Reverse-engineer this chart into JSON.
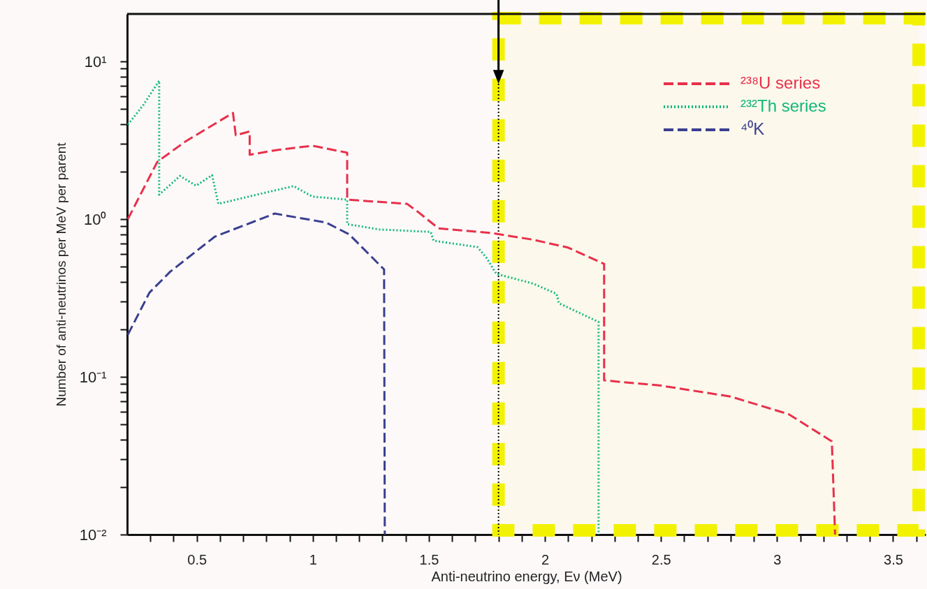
{
  "chart_data": {
    "type": "line",
    "xlabel": "Anti-neutrino energy, Eν (MeV)",
    "ylabel": "Number of anti-neutrinos per MeV per parent",
    "xlim": [
      0.2,
      3.64
    ],
    "ylim": [
      0.01,
      20
    ],
    "log": "y",
    "grid": false,
    "legend": "top right",
    "xticks": [
      {
        "value": 0.3,
        "label": null
      },
      {
        "value": 0.4,
        "label": null
      },
      0.5,
      {
        "value": 0.6,
        "label": null
      },
      {
        "value": 0.7,
        "label": null
      },
      {
        "value": 0.8,
        "label": null
      },
      {
        "value": 0.9,
        "label": null
      },
      1,
      {
        "value": 1.1,
        "label": null
      },
      {
        "value": 1.2,
        "label": null
      },
      {
        "value": 1.3,
        "label": null
      },
      {
        "value": 1.4,
        "label": null
      },
      1.5,
      {
        "value": 1.6,
        "label": null
      },
      {
        "value": 1.7,
        "label": null
      },
      {
        "value": 1.8,
        "label": null
      },
      {
        "value": 1.9,
        "label": null
      },
      2,
      {
        "value": 2.1,
        "label": null
      },
      {
        "value": 2.2,
        "label": null
      },
      {
        "value": 2.3,
        "label": null
      },
      {
        "value": 2.4,
        "label": null
      },
      2.5,
      {
        "value": 2.6,
        "label": null
      },
      {
        "value": 2.7,
        "label": null
      },
      {
        "value": 2.8,
        "label": null
      },
      {
        "value": 2.9,
        "label": null
      },
      3,
      {
        "value": 3.1,
        "label": null
      },
      {
        "value": 3.2,
        "label": null
      },
      {
        "value": 3.3,
        "label": null
      },
      {
        "value": 3.4,
        "label": null
      },
      3.5,
      {
        "value": 3.6,
        "label": null
      }
    ],
    "yticks": [
      {
        "value": 0.01,
        "label": "10⁻²"
      },
      {
        "value": 0.02,
        "label": null
      },
      {
        "value": 0.03,
        "label": null
      },
      {
        "value": 0.04,
        "label": null
      },
      {
        "value": 0.05,
        "label": null
      },
      {
        "value": 0.06,
        "label": null
      },
      {
        "value": 0.07,
        "label": null
      },
      {
        "value": 0.08,
        "label": null
      },
      {
        "value": 0.09,
        "label": null
      },
      {
        "value": 0.1,
        "label": "10⁻¹"
      },
      {
        "value": 0.2,
        "label": null
      },
      {
        "value": 0.3,
        "label": null
      },
      {
        "value": 0.4,
        "label": null
      },
      {
        "value": 0.5,
        "label": null
      },
      {
        "value": 0.6,
        "label": null
      },
      {
        "value": 0.7,
        "label": null
      },
      {
        "value": 0.8,
        "label": null
      },
      {
        "value": 0.9,
        "label": null
      },
      {
        "value": 1,
        "label": "10⁰"
      },
      {
        "value": 2,
        "label": null
      },
      {
        "value": 3,
        "label": null
      },
      {
        "value": 4,
        "label": null
      },
      {
        "value": 5,
        "label": null
      },
      {
        "value": 6,
        "label": null
      },
      {
        "value": 7,
        "label": null
      },
      {
        "value": 8,
        "label": null
      },
      {
        "value": 9,
        "label": null
      },
      {
        "value": 10,
        "label": "10¹"
      }
    ],
    "series": [
      {
        "name": "²³⁸U series",
        "color": "#e8304a",
        "line_style": "dashed",
        "x": [
          0.203,
          0.33,
          0.45,
          0.55,
          0.656,
          0.668,
          0.728,
          0.728,
          0.85,
          0.998,
          1.148,
          1.148,
          1.406,
          1.457,
          1.541,
          1.775,
          1.95,
          2.1,
          2.255,
          2.255,
          2.5,
          2.8,
          3.05,
          3.236,
          3.25
        ],
        "values": [
          1.0,
          2.31,
          3.1,
          3.8,
          4.72,
          3.4,
          3.6,
          2.56,
          2.75,
          2.92,
          2.64,
          1.33,
          1.25,
          1.1,
          0.875,
          0.815,
          0.74,
          0.66,
          0.52,
          0.095,
          0.088,
          0.075,
          0.058,
          0.039,
          0.01
        ]
      },
      {
        "name": "²³²Th series",
        "color": "#10b87a",
        "line_style": "dotted",
        "x": [
          0.203,
          0.27,
          0.338,
          0.338,
          0.428,
          0.497,
          0.566,
          0.593,
          0.75,
          0.917,
          0.998,
          1.148,
          1.148,
          1.286,
          1.508,
          1.52,
          1.709,
          1.748,
          1.79,
          1.95,
          2.05,
          2.06,
          2.231,
          2.231
        ],
        "values": [
          3.97,
          5.3,
          7.55,
          1.43,
          1.88,
          1.63,
          1.9,
          1.25,
          1.42,
          1.62,
          1.39,
          1.33,
          0.93,
          0.86,
          0.83,
          0.73,
          0.665,
          0.57,
          0.45,
          0.39,
          0.336,
          0.293,
          0.223,
          0.01
        ]
      },
      {
        "name": "⁴⁰K",
        "color": "#3a3f8f",
        "line_style": "dashed",
        "x": [
          0.203,
          0.296,
          0.386,
          0.578,
          0.836,
          1.058,
          1.157,
          1.307,
          1.31
        ],
        "values": [
          0.185,
          0.342,
          0.465,
          0.775,
          1.085,
          0.95,
          0.8,
          0.48,
          0.01
        ]
      }
    ],
    "ref_lines": [
      {
        "axis": "x",
        "value": 1.8,
        "color": "#000000",
        "line_style": "dotted"
      }
    ],
    "bands": [
      {
        "axis": "x",
        "from": 1.8,
        "to": 3.61,
        "color": "#f2f200"
      }
    ]
  }
}
